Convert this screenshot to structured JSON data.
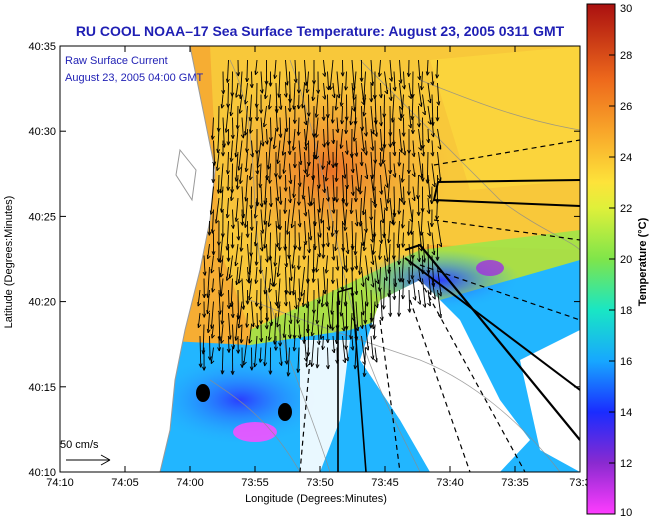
{
  "chart_data": {
    "type": "heatmap",
    "title": "RU COOL  NOAA–17  Sea Surface Temperature:  August 23, 2005 0311 GMT",
    "xlabel": "Longitude (Degrees:Minutes)",
    "ylabel": "Latitude (Degrees:Minutes)",
    "x_ticks": [
      "74:10",
      "74:05",
      "74:00",
      "73:55",
      "73:50",
      "73:45",
      "73:40",
      "73:35",
      "73:3"
    ],
    "y_ticks": [
      "40:10",
      "40:15",
      "40:20",
      "40:25",
      "40:30",
      "40:35"
    ],
    "xlim_minutes": [
      0,
      40
    ],
    "ylim_minutes": [
      0,
      25
    ],
    "colorbar": {
      "label": "Temperature (°C)",
      "range": [
        10,
        30
      ],
      "ticks": [
        "10",
        "12",
        "14",
        "16",
        "18",
        "20",
        "22",
        "24",
        "26",
        "28",
        "30"
      ]
    },
    "annotations": {
      "current_title": "Raw Surface Current",
      "current_time": "August 23, 2005 04:00 GMT",
      "scale_label": "50 cm/s"
    }
  },
  "colors": {
    "title": "#1f1fb4",
    "annotation": "#1f1fb4",
    "land": "#ffffff",
    "frame": "#000000"
  }
}
